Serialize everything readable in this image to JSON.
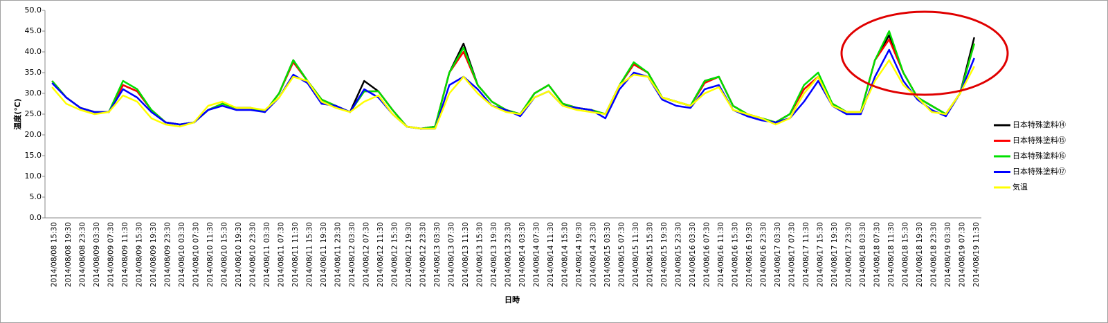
{
  "chart_data": {
    "type": "line",
    "y_label": "温度(℃)",
    "x_label": "日時",
    "ylim": [
      0,
      50
    ],
    "yticks": [
      {
        "value": 0,
        "label": "0.0"
      },
      {
        "value": 5,
        "label": "5.0"
      },
      {
        "value": 10,
        "label": "10.0"
      },
      {
        "value": 15,
        "label": "15.0"
      },
      {
        "value": 20,
        "label": "20.0"
      },
      {
        "value": 25,
        "label": "25.0"
      },
      {
        "value": 30,
        "label": "30.0"
      },
      {
        "value": 35,
        "label": "35.0"
      },
      {
        "value": 40,
        "label": "40.0"
      },
      {
        "value": 45,
        "label": "45.0"
      },
      {
        "value": 50,
        "label": "50.0"
      }
    ],
    "grid": false,
    "legend": "right",
    "categories": [
      "2014/08/08 15:30",
      "2014/08/08 19:30",
      "2014/08/08 23:30",
      "2014/08/09 03:30",
      "2014/08/09 07:30",
      "2014/08/09 11:30",
      "2014/08/09 15:30",
      "2014/08/09 19:30",
      "2014/08/09 23:30",
      "2014/08/10 03:30",
      "2014/08/10 07:30",
      "2014/08/10 11:30",
      "2014/08/10 15:30",
      "2014/08/10 19:30",
      "2014/08/10 23:30",
      "2014/08/11 03:30",
      "2014/08/11 07:30",
      "2014/08/11 11:30",
      "2014/08/11 15:30",
      "2014/08/11 19:30",
      "2014/08/11 23:30",
      "2014/08/12 03:30",
      "2014/08/12 07:30",
      "2014/08/12 11:30",
      "2014/08/12 15:30",
      "2014/08/12 19:30",
      "2014/08/12 23:30",
      "2014/08/13 03:30",
      "2014/08/13 07:30",
      "2014/08/13 11:30",
      "2014/08/13 15:30",
      "2014/08/13 19:30",
      "2014/08/13 23:30",
      "2014/08/14 03:30",
      "2014/08/14 07:30",
      "2014/08/14 11:30",
      "2014/08/14 15:30",
      "2014/08/14 19:30",
      "2014/08/14 23:30",
      "2014/08/15 03:30",
      "2014/08/15 07:30",
      "2014/08/15 11:30",
      "2014/08/15 15:30",
      "2014/08/15 19:30",
      "2014/08/15 23:30",
      "2014/08/16 03:30",
      "2014/08/16 07:30",
      "2014/08/16 11:30",
      "2014/08/16 15:30",
      "2014/08/16 19:30",
      "2014/08/16 23:30",
      "2014/08/17 03:30",
      "2014/08/17 07:30",
      "2014/08/17 11:30",
      "2014/08/17 15:30",
      "2014/08/17 19:30",
      "2014/08/17 23:30",
      "2014/08/18 03:30",
      "2014/08/18 07:30",
      "2014/08/18 11:30",
      "2014/08/18 15:30",
      "2014/08/18 19:30",
      "2014/08/18 23:30",
      "2014/08/19 03:30",
      "2014/08/19 07:30",
      "2014/08/19 11:30"
    ],
    "series": [
      {
        "name": "日本特殊塗料⑭",
        "color": "#000000",
        "values": [
          33,
          29,
          26.5,
          25.5,
          25.5,
          32,
          30.5,
          26,
          23,
          22.5,
          23,
          26,
          27.5,
          26.5,
          26.5,
          25.5,
          30,
          38,
          33,
          28.5,
          27,
          25.5,
          33,
          30.5,
          26,
          22,
          21.5,
          22,
          35,
          42,
          32,
          28,
          26,
          25,
          30,
          32,
          27.5,
          26.5,
          26,
          25,
          32,
          37,
          35,
          29,
          28,
          27,
          33,
          34,
          27,
          25,
          24,
          23,
          25,
          31,
          34,
          27.5,
          25.5,
          25.5,
          38,
          44,
          35,
          29,
          27,
          25,
          30,
          43.5
        ]
      },
      {
        "name": "日本特殊塗料⑮",
        "color": "#ff0000",
        "values": [
          33,
          29,
          26.5,
          25.5,
          25.5,
          32,
          30.5,
          26,
          23,
          22.5,
          23,
          26,
          27.5,
          26.5,
          26.5,
          25.5,
          30,
          37.5,
          33,
          28.5,
          27,
          25.5,
          30.5,
          30.5,
          26,
          22,
          21.5,
          22,
          35,
          40,
          32,
          28,
          26,
          25,
          30,
          32,
          27.5,
          26.5,
          26,
          25,
          32,
          37,
          35,
          29,
          28,
          27,
          32.5,
          34,
          27,
          25,
          24,
          23,
          25,
          31,
          34,
          27.5,
          25.5,
          25.5,
          38,
          43,
          35,
          29,
          27,
          25,
          30,
          42
        ]
      },
      {
        "name": "日本特殊塗料⑯",
        "color": "#00e000",
        "values": [
          33,
          29,
          26.5,
          25.5,
          25.5,
          33,
          31,
          26,
          23,
          22.5,
          23,
          26,
          27.5,
          26.5,
          26.5,
          25.5,
          30,
          38,
          33,
          28.5,
          27,
          25.5,
          30.5,
          30.5,
          26,
          22,
          21.5,
          22,
          35,
          41,
          32,
          28,
          26,
          25,
          30,
          32,
          27.5,
          26.5,
          26,
          25,
          32,
          37.5,
          35,
          29,
          28,
          27,
          33,
          34,
          27,
          25,
          24,
          23,
          25,
          32,
          35,
          27.5,
          25.5,
          25.5,
          38,
          45,
          35,
          29,
          27,
          25,
          30,
          42
        ]
      },
      {
        "name": "日本特殊塗料⑰",
        "color": "#0000ff",
        "values": [
          32.5,
          29,
          26.5,
          25.5,
          25.5,
          31,
          29,
          25.5,
          23,
          22.5,
          23,
          26,
          27,
          26,
          26,
          25.5,
          29,
          34.5,
          32.5,
          27.5,
          27,
          25.5,
          31,
          29,
          25,
          22,
          21.5,
          21.5,
          32,
          34,
          31,
          27,
          26,
          24.5,
          29,
          30.5,
          27,
          26.5,
          26,
          24,
          31,
          35,
          34,
          28.5,
          27,
          26.5,
          31,
          32,
          26,
          24.5,
          23.5,
          23,
          24,
          28,
          33,
          27,
          25,
          25,
          34,
          40.5,
          33,
          28.5,
          26,
          24.5,
          30,
          38.5
        ]
      },
      {
        "name": "気温",
        "color": "#ffff00",
        "values": [
          31.5,
          27.5,
          26,
          25,
          25.5,
          29.5,
          28,
          24,
          22.5,
          22,
          23,
          27,
          28,
          26.5,
          26.5,
          26,
          29,
          34,
          33,
          28,
          26.5,
          25.5,
          28,
          29.5,
          25,
          22,
          21.5,
          21.5,
          30,
          34,
          30,
          27,
          25.5,
          25,
          29,
          30.5,
          27,
          26,
          25.5,
          25,
          32,
          34.5,
          34,
          29,
          28,
          27,
          30,
          31.5,
          26,
          25,
          24,
          22.5,
          24,
          30,
          34,
          27,
          25.5,
          25.5,
          33,
          38,
          32,
          29,
          25.5,
          25,
          30,
          36.5
        ]
      }
    ]
  }
}
